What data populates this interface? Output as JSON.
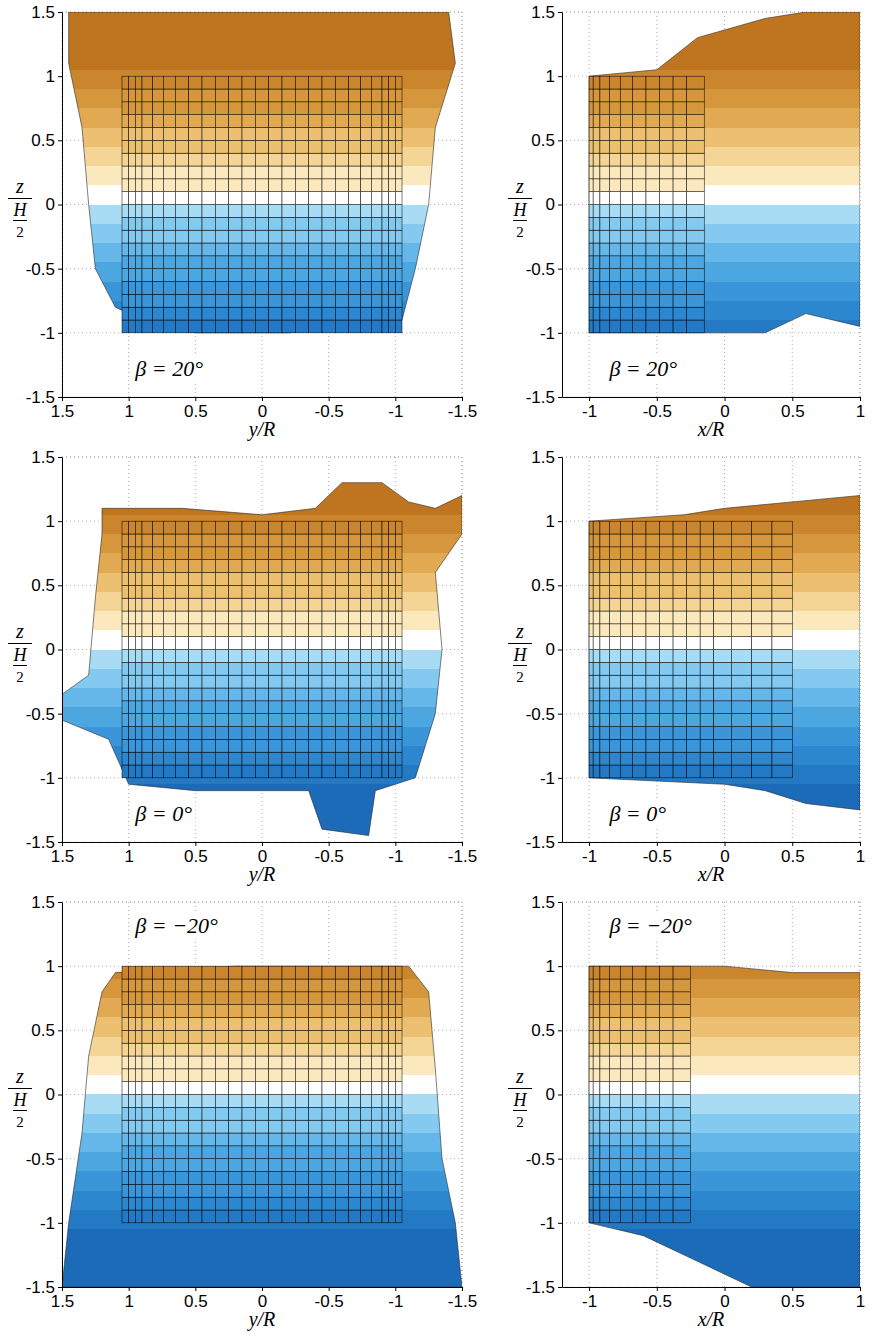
{
  "chart_data": [
    {
      "type": "surface",
      "xlabel": "y/R",
      "ylabel": {
        "numerator": "z",
        "denominator": {
          "numerator": "H",
          "denominator": "2"
        }
      },
      "xlim": [
        1.5,
        -1.5
      ],
      "xticks": [
        1.5,
        1,
        0.5,
        0,
        -0.5,
        -1,
        -1.5
      ],
      "ylim": [
        -1.5,
        1.5
      ],
      "yticks": [
        -1.5,
        -1,
        -0.5,
        0,
        0.5,
        1,
        1.5
      ],
      "grid": true,
      "clim": [
        -1.2,
        1.2
      ],
      "annotation": {
        "text": "β = 20°",
        "x": 0.95,
        "y": -1.3
      },
      "body": {
        "columns": [
          1.05,
          1.0,
          0.95,
          0.9,
          0.82,
          0.74,
          0.65,
          0.55,
          0.45,
          0.35,
          0.25,
          0.15,
          0.05,
          -0.05,
          -0.15,
          -0.25,
          -0.35,
          -0.45,
          -0.55,
          -0.65,
          -0.74,
          -0.82,
          -0.9,
          -0.95,
          -1.0,
          -1.05
        ],
        "rows": [
          -1,
          -0.9,
          -0.8,
          -0.7,
          -0.6,
          -0.5,
          -0.4,
          -0.3,
          -0.2,
          -0.1,
          0,
          0.1,
          0.2,
          0.3,
          0.4,
          0.5,
          0.6,
          0.7,
          0.8,
          0.9,
          1
        ]
      },
      "envelope": {
        "x": [
          1.4,
          0.5,
          -0.5,
          -1.4,
          -1.45,
          -1.3,
          -1.25,
          -1.15,
          -1.05,
          -0.2,
          0.5,
          0.8,
          1.1,
          1.25,
          1.3,
          1.35,
          1.45,
          1.45
        ],
        "z": [
          1.5,
          1.5,
          1.5,
          1.5,
          1.1,
          0.6,
          0,
          -0.5,
          -0.9,
          -1.0,
          -1.0,
          -0.95,
          -0.8,
          -0.5,
          0,
          0.6,
          1.1,
          1.5
        ]
      }
    },
    {
      "type": "surface",
      "xlabel": "x/R",
      "ylabel": {
        "numerator": "z",
        "denominator": {
          "numerator": "H",
          "denominator": "2"
        }
      },
      "xlim": [
        -1.2,
        1
      ],
      "xticks": [
        -1,
        -0.5,
        0,
        0.5,
        1
      ],
      "ylim": [
        -1.5,
        1.5
      ],
      "yticks": [
        -1.5,
        -1,
        -0.5,
        0,
        0.5,
        1,
        1.5
      ],
      "grid": true,
      "clim": [
        -1.2,
        1.2
      ],
      "annotation": {
        "text": "β = 20°",
        "x": -0.85,
        "y": -1.3
      },
      "body": {
        "columns": [
          -1,
          -0.97,
          -0.92,
          -0.85,
          -0.77,
          -0.68,
          -0.58,
          -0.48,
          -0.38,
          -0.28,
          -0.15
        ],
        "rows": [
          -1,
          -0.9,
          -0.8,
          -0.7,
          -0.6,
          -0.5,
          -0.4,
          -0.3,
          -0.2,
          -0.1,
          0,
          0.1,
          0.2,
          0.3,
          0.4,
          0.5,
          0.6,
          0.7,
          0.8,
          0.9,
          1
        ]
      },
      "envelope": {
        "x": [
          -1,
          -0.5,
          -0.2,
          0.3,
          0.6,
          1,
          1,
          0.6,
          0.3,
          -0.1,
          -1
        ],
        "z": [
          1.0,
          1.05,
          1.3,
          1.45,
          1.5,
          1.5,
          -0.95,
          -0.85,
          -1.0,
          -1.0,
          -1.0
        ]
      }
    },
    {
      "type": "surface",
      "xlabel": "y/R",
      "ylabel": {
        "numerator": "z",
        "denominator": {
          "numerator": "H",
          "denominator": "2"
        }
      },
      "xlim": [
        1.5,
        -1.5
      ],
      "xticks": [
        1.5,
        1,
        0.5,
        0,
        -0.5,
        -1,
        -1.5
      ],
      "ylim": [
        -1.5,
        1.5
      ],
      "yticks": [
        -1.5,
        -1,
        -0.5,
        0,
        0.5,
        1,
        1.5
      ],
      "grid": true,
      "clim": [
        -1.2,
        1.2
      ],
      "annotation": {
        "text": "β = 0°",
        "x": 0.95,
        "y": -1.3
      },
      "body": {
        "columns": [
          1.05,
          1.0,
          0.95,
          0.9,
          0.82,
          0.74,
          0.65,
          0.55,
          0.45,
          0.35,
          0.25,
          0.15,
          0.05,
          -0.05,
          -0.15,
          -0.25,
          -0.35,
          -0.45,
          -0.55,
          -0.65,
          -0.74,
          -0.82,
          -0.9,
          -0.95,
          -1.0,
          -1.05
        ],
        "rows": [
          -1,
          -0.9,
          -0.8,
          -0.7,
          -0.6,
          -0.5,
          -0.4,
          -0.3,
          -0.2,
          -0.1,
          0,
          0.1,
          0.2,
          0.3,
          0.4,
          0.5,
          0.6,
          0.7,
          0.8,
          0.9,
          1
        ]
      },
      "envelope": {
        "x": [
          1.2,
          0.6,
          0,
          -0.4,
          -0.6,
          -0.9,
          -1.1,
          -1.3,
          -1.5,
          -1.5,
          -1.3,
          -1.35,
          -1.3,
          -1.15,
          -0.85,
          -0.8,
          -0.45,
          -0.35,
          0.5,
          1.0,
          1.15,
          1.5,
          1.5,
          1.3,
          1.25,
          1.2
        ],
        "z": [
          1.1,
          1.1,
          1.05,
          1.1,
          1.3,
          1.3,
          1.15,
          1.1,
          1.2,
          0.9,
          0.6,
          0,
          -0.5,
          -1.0,
          -1.1,
          -1.45,
          -1.4,
          -1.1,
          -1.1,
          -1.05,
          -0.7,
          -0.55,
          -0.35,
          -0.2,
          0.4,
          0.9
        ]
      }
    },
    {
      "type": "surface",
      "xlabel": "x/R",
      "ylabel": {
        "numerator": "z",
        "denominator": {
          "numerator": "H",
          "denominator": "2"
        }
      },
      "xlim": [
        -1.2,
        1
      ],
      "xticks": [
        -1,
        -0.5,
        0,
        0.5,
        1
      ],
      "ylim": [
        -1.5,
        1.5
      ],
      "yticks": [
        -1.5,
        -1,
        -0.5,
        0,
        0.5,
        1,
        1.5
      ],
      "grid": true,
      "clim": [
        -1.2,
        1.2
      ],
      "annotation": {
        "text": "β = 0°",
        "x": -0.85,
        "y": -1.3
      },
      "body": {
        "columns": [
          -1,
          -0.97,
          -0.92,
          -0.85,
          -0.77,
          -0.68,
          -0.58,
          -0.48,
          -0.38,
          -0.28,
          -0.18,
          -0.08,
          0.05,
          0.2,
          0.35,
          0.5
        ],
        "rows": [
          -1,
          -0.9,
          -0.8,
          -0.7,
          -0.6,
          -0.5,
          -0.4,
          -0.3,
          -0.2,
          -0.1,
          0,
          0.1,
          0.2,
          0.3,
          0.4,
          0.5,
          0.6,
          0.7,
          0.8,
          0.9,
          1
        ]
      },
      "envelope": {
        "x": [
          -1,
          -0.3,
          0,
          0.5,
          1,
          1,
          0.6,
          0.3,
          0,
          -1
        ],
        "z": [
          1.0,
          1.05,
          1.1,
          1.15,
          1.2,
          -1.25,
          -1.2,
          -1.1,
          -1.05,
          -1.0
        ]
      }
    },
    {
      "type": "surface",
      "xlabel": "y/R",
      "ylabel": {
        "numerator": "z",
        "denominator": {
          "numerator": "H",
          "denominator": "2"
        }
      },
      "xlim": [
        1.5,
        -1.5
      ],
      "xticks": [
        1.5,
        1,
        0.5,
        0,
        -0.5,
        -1,
        -1.5
      ],
      "ylim": [
        -1.5,
        1.5
      ],
      "yticks": [
        -1.5,
        -1,
        -0.5,
        0,
        0.5,
        1,
        1.5
      ],
      "grid": true,
      "clim": [
        -1.2,
        1.2
      ],
      "annotation": {
        "text": "β = −20°",
        "x": 0.95,
        "y": 1.3
      },
      "body": {
        "columns": [
          1.05,
          1.0,
          0.95,
          0.9,
          0.82,
          0.74,
          0.65,
          0.55,
          0.45,
          0.35,
          0.25,
          0.15,
          0.05,
          -0.05,
          -0.15,
          -0.25,
          -0.35,
          -0.45,
          -0.55,
          -0.65,
          -0.74,
          -0.82,
          -0.9,
          -0.95,
          -1.0,
          -1.05
        ],
        "rows": [
          -1,
          -0.9,
          -0.8,
          -0.7,
          -0.6,
          -0.5,
          -0.4,
          -0.3,
          -0.2,
          -0.1,
          0,
          0.1,
          0.2,
          0.3,
          0.4,
          0.5,
          0.6,
          0.7,
          0.8,
          0.9,
          1
        ]
      },
      "envelope": {
        "x": [
          1.1,
          0.2,
          -1.1,
          -1.25,
          -1.3,
          -1.35,
          -1.45,
          -1.5,
          1.5,
          1.45,
          1.35,
          1.3,
          1.2
        ],
        "z": [
          0.95,
          1.0,
          1.0,
          0.8,
          0.2,
          -0.5,
          -1.0,
          -1.5,
          -1.5,
          -1.0,
          -0.3,
          0.3,
          0.8
        ]
      }
    },
    {
      "type": "surface",
      "xlabel": "x/R",
      "ylabel": {
        "numerator": "z",
        "denominator": {
          "numerator": "H",
          "denominator": "2"
        }
      },
      "xlim": [
        -1.2,
        1
      ],
      "xticks": [
        -1,
        -0.5,
        0,
        0.5,
        1
      ],
      "ylim": [
        -1.5,
        1.5
      ],
      "yticks": [
        -1.5,
        -1,
        -0.5,
        0,
        0.5,
        1,
        1.5
      ],
      "grid": true,
      "clim": [
        -1.2,
        1.2
      ],
      "annotation": {
        "text": "β = −20°",
        "x": -0.85,
        "y": 1.3
      },
      "body": {
        "columns": [
          -1,
          -0.97,
          -0.92,
          -0.85,
          -0.77,
          -0.68,
          -0.58,
          -0.48,
          -0.38,
          -0.25
        ],
        "rows": [
          -1,
          -0.9,
          -0.8,
          -0.7,
          -0.6,
          -0.5,
          -0.4,
          -0.3,
          -0.2,
          -0.1,
          0,
          0.1,
          0.2,
          0.3,
          0.4,
          0.5,
          0.6,
          0.7,
          0.8,
          0.9,
          1
        ]
      },
      "envelope": {
        "x": [
          -1,
          0,
          0.5,
          1,
          1,
          0.2,
          -0.2,
          -0.6,
          -1
        ],
        "z": [
          1.0,
          1.0,
          0.95,
          0.95,
          -1.5,
          -1.5,
          -1.3,
          -1.1,
          -1.0
        ]
      }
    }
  ]
}
